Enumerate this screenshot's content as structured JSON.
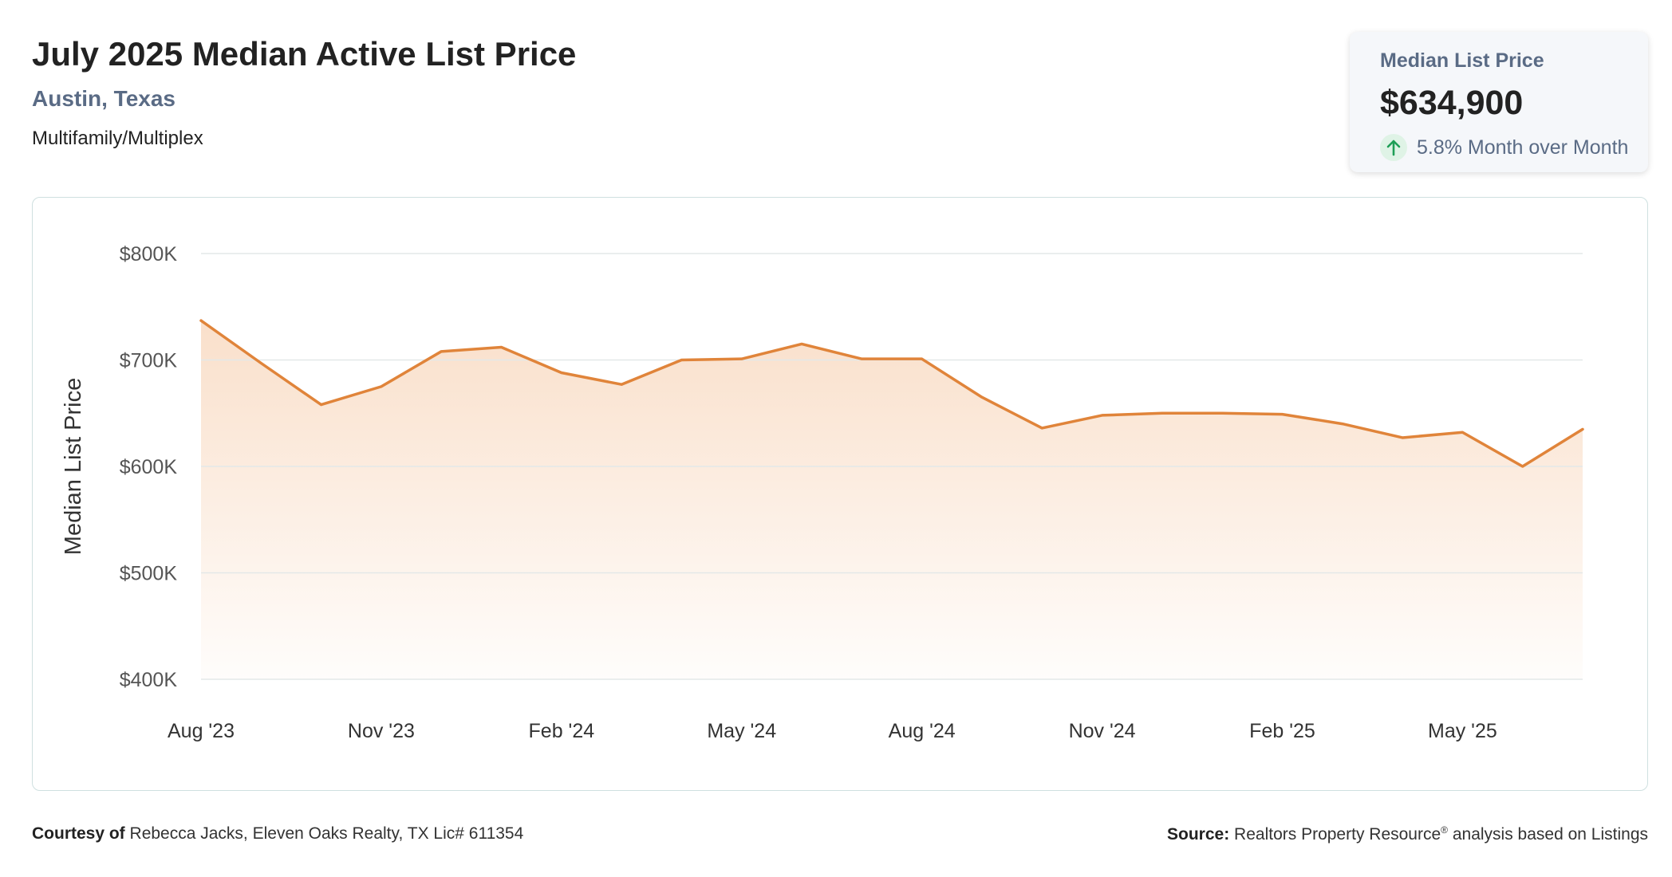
{
  "header": {
    "title": "July 2025 Median Active List Price",
    "location": "Austin, Texas",
    "property_type": "Multifamily/Multiplex"
  },
  "kpi": {
    "label": "Median List Price",
    "value": "$634,900",
    "change": "5.8% Month over Month",
    "change_icon": "arrow-up-icon",
    "change_color": "#1e9e57"
  },
  "colors": {
    "line": "#e0843a",
    "fill": "#f5c6a0",
    "grid": "#e3e8e8",
    "axis_text": "#555555"
  },
  "chart_data": {
    "type": "area",
    "title": "",
    "xlabel": "",
    "ylabel": "Median List Price",
    "ylim": [
      400000,
      800000
    ],
    "y_ticks": [
      {
        "value": 800000,
        "label": "$800K"
      },
      {
        "value": 700000,
        "label": "$700K"
      },
      {
        "value": 600000,
        "label": "$600K"
      },
      {
        "value": 500000,
        "label": "$500K"
      },
      {
        "value": 400000,
        "label": "$400K"
      }
    ],
    "x_ticks": [
      "Aug '23",
      "Nov '23",
      "Feb '24",
      "May '24",
      "Aug '24",
      "Nov '24",
      "Feb '25",
      "May '25"
    ],
    "x": [
      "2023-08",
      "2023-09",
      "2023-10",
      "2023-11",
      "2023-12",
      "2024-01",
      "2024-02",
      "2024-03",
      "2024-04",
      "2024-05",
      "2024-06",
      "2024-07",
      "2024-08",
      "2024-09",
      "2024-10",
      "2024-11",
      "2024-12",
      "2025-01",
      "2025-02",
      "2025-03",
      "2025-04",
      "2025-05",
      "2025-06",
      "2025-07"
    ],
    "grid": true,
    "series": [
      {
        "values": [
          737000,
          697000,
          658000,
          675000,
          708000,
          712000,
          688000,
          677000,
          700000,
          701000,
          715000,
          701000,
          701000,
          665000,
          636000,
          648000,
          650000,
          650000,
          649000,
          640000,
          627000,
          632000,
          600000,
          634900
        ]
      }
    ]
  },
  "footer": {
    "courtesy_label": "Courtesy of",
    "courtesy_text": "Rebecca Jacks, Eleven Oaks Realty, TX Lic# 611354",
    "source_label": "Source:",
    "source_text": "Realtors Property Resource",
    "source_mark": "®",
    "source_suffix": "analysis based on Listings"
  }
}
